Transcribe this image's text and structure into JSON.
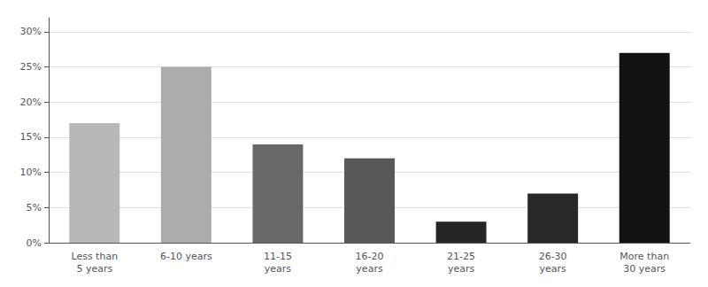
{
  "chart_data": {
    "type": "bar",
    "categories": [
      "Less than\n5 years",
      "6-10 years",
      "11-15\nyears",
      "16-20\nyears",
      "21-25\nyears",
      "26-30\nyears",
      "More than\n30 years"
    ],
    "values": [
      17,
      25,
      14,
      12,
      3,
      7,
      27
    ],
    "colors": [
      "#b8b8b8",
      "#acacac",
      "#686868",
      "#585858",
      "#252525",
      "#282828",
      "#121212"
    ],
    "ylim": [
      0,
      32
    ],
    "yticks": [
      {
        "value": 0,
        "label": "0%"
      },
      {
        "value": 5,
        "label": "5%"
      },
      {
        "value": 10,
        "label": "10%"
      },
      {
        "value": 15,
        "label": "15%"
      },
      {
        "value": 20,
        "label": "20%"
      },
      {
        "value": 25,
        "label": "25%"
      },
      {
        "value": 30,
        "label": "30%"
      }
    ],
    "grid": true
  }
}
